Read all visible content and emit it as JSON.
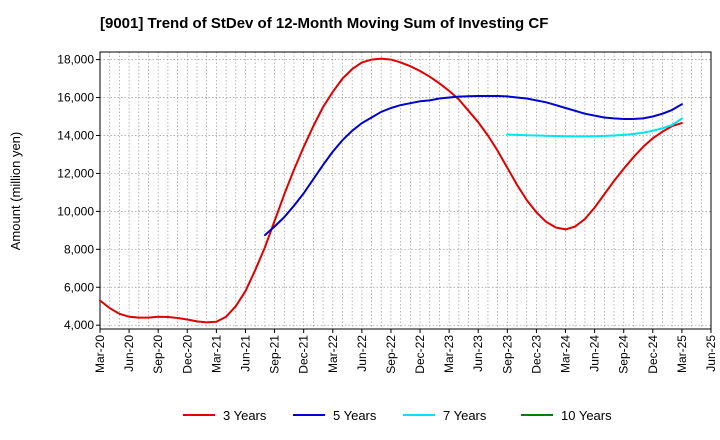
{
  "chart_data": {
    "type": "line",
    "title": "[9001]  Trend of StDev of 12-Month Moving Sum of Investing CF",
    "ylabel": "Amount (million yen)",
    "xlabel": "",
    "ylim": [
      3800,
      18400
    ],
    "yticks": [
      4000,
      6000,
      8000,
      10000,
      12000,
      14000,
      16000,
      18000
    ],
    "ytick_labels": [
      "4,000",
      "6,000",
      "8,000",
      "10,000",
      "12,000",
      "14,000",
      "16,000",
      "18,000"
    ],
    "xlim": [
      "2020-03",
      "2025-06"
    ],
    "xtick_labels": [
      "Mar-20",
      "Jun-20",
      "Sep-20",
      "Dec-20",
      "Mar-21",
      "Jun-21",
      "Sep-21",
      "Dec-21",
      "Mar-22",
      "Jun-22",
      "Sep-22",
      "Dec-22",
      "Mar-23",
      "Jun-23",
      "Sep-23",
      "Dec-23",
      "Mar-24",
      "Jun-24",
      "Sep-24",
      "Dec-24",
      "Mar-25",
      "Jun-25"
    ],
    "xticks": [
      "2020-03",
      "2020-06",
      "2020-09",
      "2020-12",
      "2021-03",
      "2021-06",
      "2021-09",
      "2021-12",
      "2022-03",
      "2022-06",
      "2022-09",
      "2022-12",
      "2023-03",
      "2023-06",
      "2023-09",
      "2023-12",
      "2024-03",
      "2024-06",
      "2024-09",
      "2024-12",
      "2025-03",
      "2025-06"
    ],
    "grid": true,
    "legend_position": "bottom",
    "series": [
      {
        "name": "3 Years",
        "color": "#e00000",
        "points": [
          [
            "2020-03",
            5300
          ],
          [
            "2020-04",
            4900
          ],
          [
            "2020-05",
            4600
          ],
          [
            "2020-06",
            4450
          ],
          [
            "2020-07",
            4400
          ],
          [
            "2020-08",
            4400
          ],
          [
            "2020-09",
            4450
          ],
          [
            "2020-10",
            4430
          ],
          [
            "2020-11",
            4380
          ],
          [
            "2020-12",
            4300
          ],
          [
            "2021-01",
            4200
          ],
          [
            "2021-02",
            4150
          ],
          [
            "2021-03",
            4180
          ],
          [
            "2021-04",
            4450
          ],
          [
            "2021-05",
            5000
          ],
          [
            "2021-06",
            5800
          ],
          [
            "2021-07",
            6900
          ],
          [
            "2021-08",
            8100
          ],
          [
            "2021-09",
            9500
          ],
          [
            "2021-10",
            10900
          ],
          [
            "2021-11",
            12200
          ],
          [
            "2021-12",
            13400
          ],
          [
            "2022-01",
            14500
          ],
          [
            "2022-02",
            15500
          ],
          [
            "2022-03",
            16300
          ],
          [
            "2022-04",
            17000
          ],
          [
            "2022-05",
            17500
          ],
          [
            "2022-06",
            17850
          ],
          [
            "2022-07",
            18000
          ],
          [
            "2022-08",
            18050
          ],
          [
            "2022-09",
            18000
          ],
          [
            "2022-10",
            17850
          ],
          [
            "2022-11",
            17650
          ],
          [
            "2022-12",
            17400
          ],
          [
            "2023-01",
            17100
          ],
          [
            "2023-02",
            16750
          ],
          [
            "2023-03",
            16350
          ],
          [
            "2023-04",
            15900
          ],
          [
            "2023-05",
            15300
          ],
          [
            "2023-06",
            14700
          ],
          [
            "2023-07",
            14000
          ],
          [
            "2023-08",
            13200
          ],
          [
            "2023-09",
            12300
          ],
          [
            "2023-10",
            11400
          ],
          [
            "2023-11",
            10600
          ],
          [
            "2023-12",
            9950
          ],
          [
            "2024-01",
            9450
          ],
          [
            "2024-02",
            9150
          ],
          [
            "2024-03",
            9050
          ],
          [
            "2024-04",
            9200
          ],
          [
            "2024-05",
            9600
          ],
          [
            "2024-06",
            10200
          ],
          [
            "2024-07",
            10900
          ],
          [
            "2024-08",
            11600
          ],
          [
            "2024-09",
            12250
          ],
          [
            "2024-10",
            12850
          ],
          [
            "2024-11",
            13400
          ],
          [
            "2024-12",
            13850
          ],
          [
            "2025-01",
            14200
          ],
          [
            "2025-02",
            14500
          ],
          [
            "2025-03",
            14650
          ]
        ]
      },
      {
        "name": "5 Years",
        "color": "#0000cc",
        "points": [
          [
            "2021-08",
            8750
          ],
          [
            "2021-09",
            9200
          ],
          [
            "2021-10",
            9700
          ],
          [
            "2021-11",
            10300
          ],
          [
            "2021-12",
            10950
          ],
          [
            "2022-01",
            11700
          ],
          [
            "2022-02",
            12450
          ],
          [
            "2022-03",
            13150
          ],
          [
            "2022-04",
            13750
          ],
          [
            "2022-05",
            14250
          ],
          [
            "2022-06",
            14650
          ],
          [
            "2022-07",
            14950
          ],
          [
            "2022-08",
            15250
          ],
          [
            "2022-09",
            15450
          ],
          [
            "2022-10",
            15600
          ],
          [
            "2022-11",
            15700
          ],
          [
            "2022-12",
            15800
          ],
          [
            "2022-13",
            15850
          ],
          [
            "2023-02",
            15950
          ],
          [
            "2023-03",
            16000
          ],
          [
            "2023-04",
            16050
          ],
          [
            "2023-05",
            16070
          ],
          [
            "2023-06",
            16080
          ],
          [
            "2023-07",
            16080
          ],
          [
            "2023-08",
            16080
          ],
          [
            "2023-09",
            16060
          ],
          [
            "2023-10",
            16000
          ],
          [
            "2023-11",
            15950
          ],
          [
            "2023-12",
            15850
          ],
          [
            "2024-01",
            15750
          ],
          [
            "2024-02",
            15600
          ],
          [
            "2024-03",
            15450
          ],
          [
            "2024-04",
            15300
          ],
          [
            "2024-05",
            15150
          ],
          [
            "2024-06",
            15050
          ],
          [
            "2024-07",
            14950
          ],
          [
            "2024-08",
            14900
          ],
          [
            "2024-09",
            14870
          ],
          [
            "2024-10",
            14870
          ],
          [
            "2024-11",
            14900
          ],
          [
            "2024-12",
            15000
          ],
          [
            "2025-01",
            15150
          ],
          [
            "2025-02",
            15350
          ],
          [
            "2025-03",
            15650
          ]
        ]
      },
      {
        "name": "7 Years",
        "color": "#00e5ee",
        "points": [
          [
            "2023-09",
            14050
          ],
          [
            "2023-10",
            14030
          ],
          [
            "2023-11",
            14010
          ],
          [
            "2023-12",
            14000
          ],
          [
            "2024-01",
            13990
          ],
          [
            "2024-02",
            13970
          ],
          [
            "2024-03",
            13960
          ],
          [
            "2024-04",
            13950
          ],
          [
            "2024-05",
            13950
          ],
          [
            "2024-06",
            13960
          ],
          [
            "2024-07",
            13980
          ],
          [
            "2024-08",
            14000
          ],
          [
            "2024-09",
            14030
          ],
          [
            "2024-10",
            14080
          ],
          [
            "2024-11",
            14150
          ],
          [
            "2024-12",
            14250
          ],
          [
            "2025-01",
            14380
          ],
          [
            "2025-02",
            14550
          ],
          [
            "2025-03",
            14900
          ]
        ]
      },
      {
        "name": "10 Years",
        "color": "#008000",
        "points": []
      }
    ]
  }
}
